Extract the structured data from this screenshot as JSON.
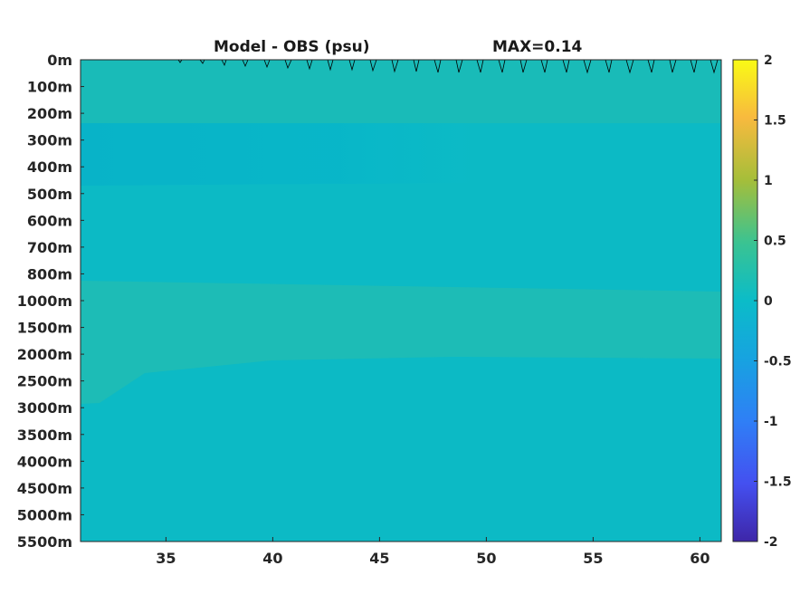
{
  "chart_data": {
    "type": "heatmap",
    "title": "Model - OBS (psu)",
    "subtitle": "MAX=0.14",
    "x_ticks": [
      35,
      40,
      45,
      50,
      55,
      60
    ],
    "xlim": [
      31,
      61
    ],
    "y_ticks": [
      "0m",
      "100m",
      "200m",
      "300m",
      "400m",
      "500m",
      "600m",
      "700m",
      "800m",
      "1000m",
      "1500m",
      "2000m",
      "2500m",
      "3000m",
      "3500m",
      "4000m",
      "4500m",
      "5000m",
      "5500m"
    ],
    "y_direction": "depth increasing downward, stretched (non-linear) axis",
    "colorbar": {
      "ticks": [
        2,
        1.5,
        1,
        0.5,
        0,
        -0.5,
        -1,
        -1.5,
        -2
      ],
      "clim": [
        -2,
        2
      ],
      "colormap": "parula"
    },
    "max_value": 0.14,
    "field_description": "Difference field near zero almost everywhere; slight positive values in upper 0-200m and 1000-2000m band, slight negative band 250-450m fading eastward, with a contour line along the surface at the top.",
    "bands": [
      {
        "depth_range": [
          "0m",
          "200m"
        ],
        "value": 0.1
      },
      {
        "depth_range": [
          "200m",
          "500m"
        ],
        "value": -0.05
      },
      {
        "depth_range": [
          "500m",
          "1000m"
        ],
        "value": 0.0
      },
      {
        "depth_range": [
          "1000m",
          "2000m"
        ],
        "value": 0.08
      },
      {
        "depth_range": [
          "2000m",
          "5500m"
        ],
        "value": 0.0
      }
    ]
  }
}
